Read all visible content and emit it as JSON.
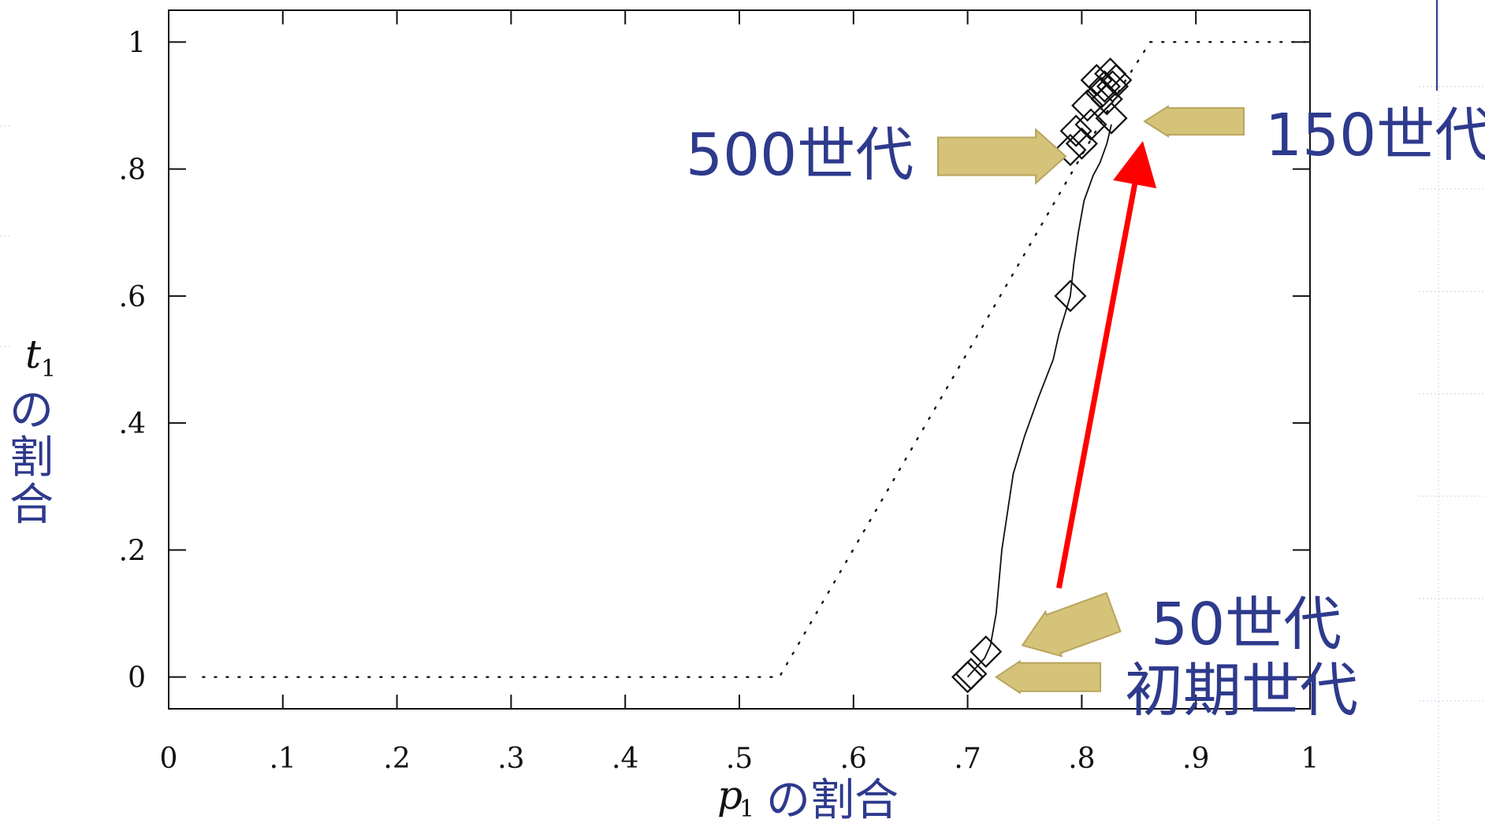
{
  "chart_data": {
    "type": "scatter",
    "xlabel_math": "p",
    "xlabel_sub": "1",
    "xlabel_text": "の割合",
    "ylabel_math": "t",
    "ylabel_sub": "1",
    "ylabel_chars": [
      "の",
      "割",
      "合"
    ],
    "xlim": [
      0,
      1
    ],
    "ylim": [
      -0.05,
      1.05
    ],
    "x_ticks": [
      {
        "v": 0,
        "label": "0"
      },
      {
        "v": 0.1,
        "label": ".1"
      },
      {
        "v": 0.2,
        "label": ".2"
      },
      {
        "v": 0.3,
        "label": ".3"
      },
      {
        "v": 0.4,
        "label": ".4"
      },
      {
        "v": 0.5,
        "label": ".5"
      },
      {
        "v": 0.6,
        "label": ".6"
      },
      {
        "v": 0.7,
        "label": ".7"
      },
      {
        "v": 0.8,
        "label": ".8"
      },
      {
        "v": 0.9,
        "label": ".9"
      },
      {
        "v": 1,
        "label": "1"
      }
    ],
    "y_ticks": [
      {
        "v": 0,
        "label": "0"
      },
      {
        "v": 0.2,
        "label": ".2"
      },
      {
        "v": 0.4,
        "label": ".4"
      },
      {
        "v": 0.6,
        "label": ".6"
      },
      {
        "v": 0.8,
        "label": ".8"
      },
      {
        "v": 1,
        "label": "1"
      }
    ],
    "series": [
      {
        "style": "dotted",
        "x": [
          0.03,
          0.535,
          0.835,
          0.86,
          1.0
        ],
        "y": [
          0.0,
          0.0,
          0.93,
          1.0,
          1.0
        ]
      },
      {
        "style": "solid",
        "x": [
          0.7,
          0.705,
          0.715,
          0.72,
          0.725,
          0.73,
          0.74,
          0.75,
          0.762,
          0.775,
          0.78,
          0.785,
          0.79,
          0.793,
          0.797,
          0.802,
          0.806,
          0.81,
          0.816,
          0.822,
          0.826
        ],
        "y": [
          0.0,
          0.01,
          0.03,
          0.05,
          0.1,
          0.2,
          0.32,
          0.38,
          0.44,
          0.5,
          0.54,
          0.57,
          0.6,
          0.65,
          0.7,
          0.75,
          0.77,
          0.79,
          0.81,
          0.84,
          0.87
        ]
      },
      {
        "style": "markers",
        "x": [
          0.7,
          0.703,
          0.716,
          0.79,
          0.79,
          0.795,
          0.8,
          0.805,
          0.808,
          0.813,
          0.817,
          0.82,
          0.822,
          0.825,
          0.827,
          0.83,
          0.826
        ],
        "y": [
          0.0,
          0.005,
          0.04,
          0.6,
          0.83,
          0.86,
          0.84,
          0.9,
          0.87,
          0.94,
          0.92,
          0.93,
          0.91,
          0.95,
          0.93,
          0.94,
          0.88
        ]
      }
    ],
    "annotations": [
      {
        "text": "500世代",
        "arrow_dir": "right",
        "target": [
          0.786,
          0.82
        ]
      },
      {
        "text": "150世代",
        "arrow_dir": "left",
        "target": [
          0.855,
          0.875
        ]
      },
      {
        "text": "50世代",
        "arrow_dir": "left",
        "target": [
          0.748,
          0.05
        ]
      },
      {
        "text": "初期世代",
        "arrow_dir": "left",
        "target": [
          0.725,
          0.0
        ]
      }
    ],
    "trend_arrow": {
      "color": "#ff0000",
      "from": [
        0.78,
        0.14
      ],
      "to": [
        0.85,
        0.81
      ]
    },
    "annotation_text_color": "#2e3a8c",
    "annotation_arrow_color": "#d6c37a"
  }
}
